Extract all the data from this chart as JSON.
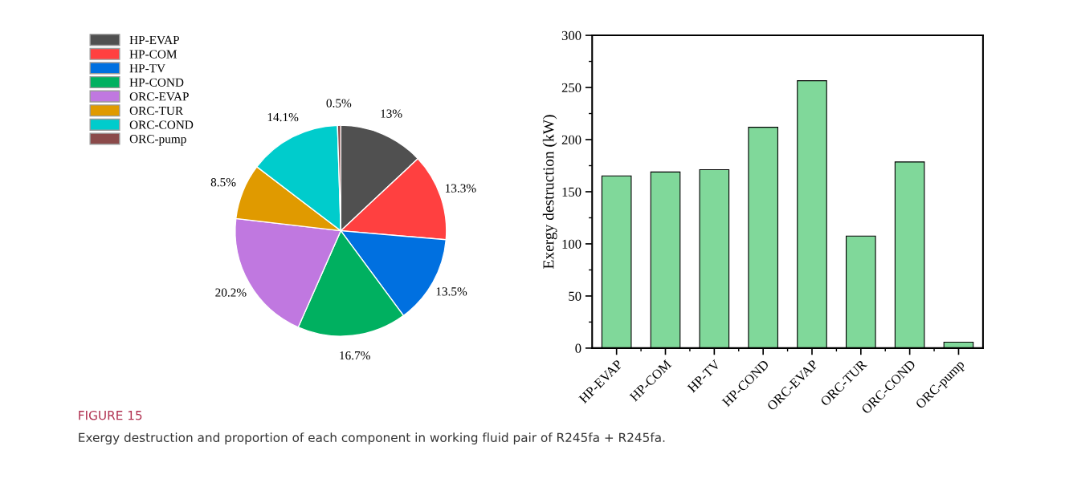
{
  "chart_data": [
    {
      "type": "pie",
      "categories": [
        "HP-EVAP",
        "HP-COM",
        "HP-TV",
        "HP-COND",
        "ORC-EVAP",
        "ORC-TUR",
        "ORC-COND",
        "ORC-pump"
      ],
      "values": [
        13,
        13.3,
        13.5,
        16.7,
        20.2,
        8.5,
        14.1,
        0.5
      ],
      "value_labels": [
        "13%",
        "13.3%",
        "13.5%",
        "16.7%",
        "20.2%",
        "8.5%",
        "14.1%",
        "0.5%"
      ],
      "colors": [
        "#505050",
        "#ff4040",
        "#0070e0",
        "#00b060",
        "#c078e0",
        "#e09a00",
        "#00cccc",
        "#8b4a4a"
      ],
      "legend": "top left",
      "annotations": [
        "FIGURE 15",
        "Exergy destruction and proportion of each component in working fluid pair of R245fa + R245fa."
      ]
    },
    {
      "type": "bar",
      "categories": [
        "HP-EVAP",
        "HP-COM",
        "HP-TV",
        "HP-COND",
        "ORC-EVAP",
        "ORC-TUR",
        "ORC-COND",
        "ORC-pump"
      ],
      "values": [
        165.2,
        168.9,
        171.2,
        211.8,
        256.5,
        107.5,
        178.6,
        5.7
      ],
      "color": "#80d89a",
      "ylabel": "Exergy destruction (kW)",
      "ylim": [
        0,
        300
      ],
      "yticks": [
        0,
        50,
        100,
        150,
        200,
        250,
        300
      ],
      "grid": false
    }
  ]
}
